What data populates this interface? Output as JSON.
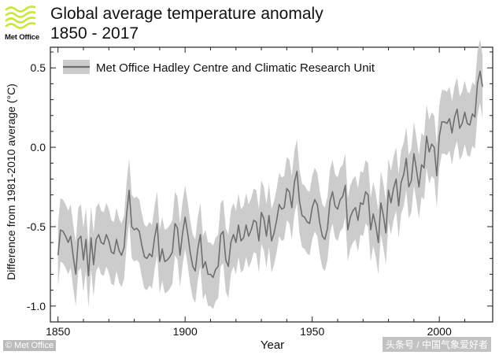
{
  "header": {
    "logo_text": "Met Office",
    "title": "Global average temperature anomaly",
    "subtitle": "1850 - 2017"
  },
  "credit": "© Met Office",
  "watermark": "头条号 / 中国气象爱好者",
  "colors": {
    "line": "#6e6e6e",
    "band": "#cccccc",
    "logo_green": "#c8e63c",
    "axis": "#222222"
  },
  "chart_data": {
    "type": "line",
    "title": "Global average temperature anomaly",
    "subtitle": "1850 - 2017",
    "xlabel": "Year",
    "ylabel": "Difference from 1981-2010 average (°C)",
    "xlim": [
      1847,
      2021
    ],
    "ylim": [
      -1.1,
      0.63
    ],
    "xticks": [
      1850,
      1900,
      1950,
      2000
    ],
    "yticks": [
      -1.0,
      -0.5,
      0.0,
      0.5
    ],
    "xtick_labels": [
      "1850",
      "1900",
      "1950",
      "2000"
    ],
    "ytick_labels": [
      "-1.0",
      "-0.5",
      "0.0",
      "0.5"
    ],
    "grid": false,
    "legend": {
      "position": "top-left",
      "entries": [
        "Met Office Hadley Centre and Climatic Research Unit"
      ]
    },
    "series": [
      {
        "name": "Met Office Hadley Centre and Climatic Research Unit",
        "x_start": 1850,
        "x_step": 1,
        "values": [
          -0.68,
          -0.52,
          -0.53,
          -0.56,
          -0.6,
          -0.56,
          -0.69,
          -0.8,
          -0.58,
          -0.56,
          -0.71,
          -0.58,
          -0.81,
          -0.57,
          -0.74,
          -0.58,
          -0.55,
          -0.6,
          -0.61,
          -0.55,
          -0.59,
          -0.66,
          -0.67,
          -0.58,
          -0.65,
          -0.68,
          -0.63,
          -0.42,
          -0.27,
          -0.5,
          -0.52,
          -0.51,
          -0.53,
          -0.62,
          -0.69,
          -0.7,
          -0.67,
          -0.69,
          -0.57,
          -0.48,
          -0.72,
          -0.64,
          -0.72,
          -0.71,
          -0.69,
          -0.66,
          -0.48,
          -0.51,
          -0.68,
          -0.54,
          -0.44,
          -0.54,
          -0.66,
          -0.75,
          -0.78,
          -0.64,
          -0.55,
          -0.76,
          -0.72,
          -0.8,
          -0.8,
          -0.82,
          -0.77,
          -0.75,
          -0.55,
          -0.53,
          -0.71,
          -0.75,
          -0.6,
          -0.55,
          -0.6,
          -0.49,
          -0.59,
          -0.57,
          -0.49,
          -0.56,
          -0.52,
          -0.46,
          -0.47,
          -0.59,
          -0.41,
          -0.45,
          -0.56,
          -0.43,
          -0.59,
          -0.54,
          -0.46,
          -0.36,
          -0.39,
          -0.38,
          -0.26,
          -0.28,
          -0.38,
          -0.22,
          -0.15,
          -0.34,
          -0.43,
          -0.44,
          -0.47,
          -0.48,
          -0.38,
          -0.33,
          -0.36,
          -0.48,
          -0.56,
          -0.58,
          -0.51,
          -0.34,
          -0.28,
          -0.37,
          -0.39,
          -0.33,
          -0.31,
          -0.24,
          -0.52,
          -0.44,
          -0.4,
          -0.38,
          -0.46,
          -0.35,
          -0.36,
          -0.28,
          -0.3,
          -0.52,
          -0.42,
          -0.49,
          -0.6,
          -0.35,
          -0.43,
          -0.54,
          -0.27,
          -0.35,
          -0.26,
          -0.2,
          -0.37,
          -0.22,
          -0.17,
          -0.07,
          -0.25,
          -0.21,
          -0.04,
          -0.14,
          -0.25,
          -0.11,
          -0.13,
          0.07,
          -0.03,
          0.02,
          0.0,
          -0.18,
          0.07,
          0.16,
          0.16,
          0.15,
          0.18,
          0.09,
          0.19,
          0.24,
          0.12,
          0.15,
          0.22,
          0.15,
          0.14,
          0.21,
          0.19,
          0.4,
          0.48,
          0.38
        ],
        "uncertainty_band": {
          "lower_offset": 0.2,
          "upper_offset": 0.2
        }
      }
    ]
  }
}
